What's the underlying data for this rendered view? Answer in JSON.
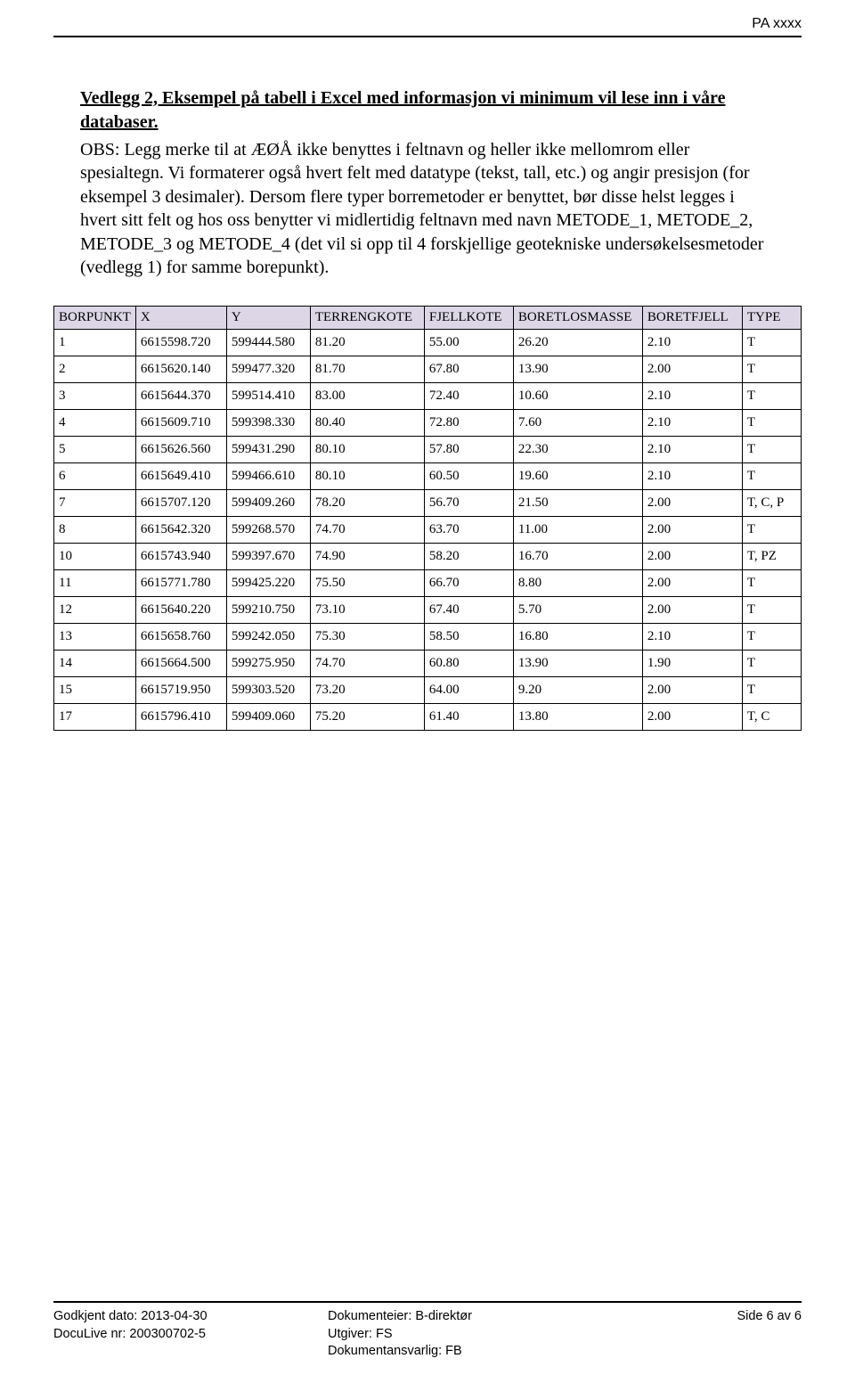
{
  "header_tag": "PA xxxx",
  "heading": "Vedlegg 2, Eksempel på tabell i Excel med informasjon vi minimum vil lese inn i våre databaser.",
  "paragraph": "OBS: Legg merke til at ÆØÅ ikke benyttes i feltnavn og heller ikke mellomrom eller spesialtegn. Vi formaterer også hvert felt med datatype (tekst, tall, etc.) og angir presisjon (for eksempel 3 desimaler). Dersom flere typer borremetoder er benyttet, bør disse helst legges i hvert sitt felt og hos oss benytter vi midlertidig feltnavn med navn METODE_1, METODE_2, METODE_3 og METODE_4 (det vil si opp til 4 forskjellige geotekniske undersøkelsesmetoder (vedlegg 1) for samme borepunkt).",
  "table": {
    "columns": [
      "BORPUNKT",
      "X",
      "Y",
      "TERRENGKOTE",
      "FJELLKOTE",
      "BORETLOSMASSE",
      "BORETFJELL",
      "TYPE"
    ],
    "rows": [
      [
        "1",
        "6615598.720",
        "599444.580",
        "81.20",
        "55.00",
        "26.20",
        "2.10",
        "T"
      ],
      [
        "2",
        "6615620.140",
        "599477.320",
        "81.70",
        "67.80",
        "13.90",
        "2.00",
        "T"
      ],
      [
        "3",
        "6615644.370",
        "599514.410",
        "83.00",
        "72.40",
        "10.60",
        "2.10",
        "T"
      ],
      [
        "4",
        "6615609.710",
        "599398.330",
        "80.40",
        "72.80",
        "7.60",
        "2.10",
        "T"
      ],
      [
        "5",
        "6615626.560",
        "599431.290",
        "80.10",
        "57.80",
        "22.30",
        "2.10",
        "T"
      ],
      [
        "6",
        "6615649.410",
        "599466.610",
        "80.10",
        "60.50",
        "19.60",
        "2.10",
        "T"
      ],
      [
        "7",
        "6615707.120",
        "599409.260",
        "78.20",
        "56.70",
        "21.50",
        "2.00",
        "T, C, P"
      ],
      [
        "8",
        "6615642.320",
        "599268.570",
        "74.70",
        "63.70",
        "11.00",
        "2.00",
        "T"
      ],
      [
        "10",
        "6615743.940",
        "599397.670",
        "74.90",
        "58.20",
        "16.70",
        "2.00",
        "T, PZ"
      ],
      [
        "11",
        "6615771.780",
        "599425.220",
        "75.50",
        "66.70",
        "8.80",
        "2.00",
        "T"
      ],
      [
        "12",
        "6615640.220",
        "599210.750",
        "73.10",
        "67.40",
        "5.70",
        "2.00",
        "T"
      ],
      [
        "13",
        "6615658.760",
        "599242.050",
        "75.30",
        "58.50",
        "16.80",
        "2.10",
        "T"
      ],
      [
        "14",
        "6615664.500",
        "599275.950",
        "74.70",
        "60.80",
        "13.90",
        "1.90",
        "T"
      ],
      [
        "15",
        "6615719.950",
        "599303.520",
        "73.20",
        "64.00",
        "9.20",
        "2.00",
        "T"
      ],
      [
        "17",
        "6615796.410",
        "599409.060",
        "75.20",
        "61.40",
        "13.80",
        "2.00",
        "T, C"
      ]
    ]
  },
  "footer": {
    "left_line1": "Godkjent dato: 2013-04-30",
    "left_line2": "DocuLive nr: 200300702-5",
    "mid_line1": "Dokumenteier: B-direktør",
    "mid_line2": "Utgiver: FS",
    "mid_line3": "Dokumentansvarlig: FB",
    "right": "Side 6 av 6"
  }
}
